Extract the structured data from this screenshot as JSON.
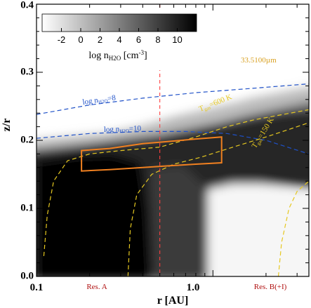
{
  "chart_data": {
    "type": "heatmap",
    "xlabel": "r [AU]",
    "ylabel": "z/r",
    "x_scale": "log",
    "xlim": [
      0.1,
      3.5
    ],
    "ylim": [
      0.0,
      0.4
    ],
    "x_ticks": [
      "0.1",
      "1.0"
    ],
    "y_ticks": [
      "0.0",
      "0.1",
      "0.2",
      "0.3",
      "0.4"
    ],
    "colorbar": {
      "label": "log n",
      "label_sub": "H2O",
      "label_unit": " [cm",
      "label_exp": "-3",
      "label_close": "]",
      "ticks": [
        "-2",
        "0",
        "2",
        "4",
        "6",
        "8",
        "10"
      ],
      "range": [
        -4,
        12
      ],
      "low_color": "#ffffff",
      "high_color": "#000000",
      "placement": "top-left"
    },
    "vline": {
      "x": 0.5,
      "color": "#ff4040"
    },
    "contours": [
      {
        "label": "log n",
        "label_sub": "H2O",
        "label_eq": "=8",
        "color": "#1e50c8",
        "points": [
          [
            0.1,
            0.238
          ],
          [
            0.2,
            0.252
          ],
          [
            0.4,
            0.262
          ],
          [
            0.8,
            0.27
          ],
          [
            1.6,
            0.276
          ],
          [
            3.5,
            0.283
          ]
        ]
      },
      {
        "label": "log n",
        "label_sub": "H2O",
        "label_eq": "=10",
        "color": "#1e50c8",
        "points": [
          [
            0.1,
            0.203
          ],
          [
            0.2,
            0.21
          ],
          [
            0.4,
            0.213
          ],
          [
            0.7,
            0.213
          ],
          [
            1.2,
            0.21
          ],
          [
            2.0,
            0.2
          ],
          [
            3.5,
            0.18
          ]
        ]
      },
      {
        "label": "T",
        "label_sub": "gas",
        "label_eq": "=600 K",
        "color": "#e6c820",
        "points": [
          [
            0.11,
            0.03
          ],
          [
            0.115,
            0.09
          ],
          [
            0.125,
            0.14
          ],
          [
            0.15,
            0.17
          ],
          [
            0.2,
            0.18
          ],
          [
            0.3,
            0.185
          ],
          [
            0.5,
            0.19
          ],
          [
            0.8,
            0.205
          ],
          [
            1.2,
            0.22
          ],
          [
            1.7,
            0.23
          ],
          [
            2.5,
            0.238
          ],
          [
            3.5,
            0.245
          ]
        ]
      },
      {
        "label": "T",
        "label_sub": "gas",
        "label_eq": "=150 K",
        "color": "#e6c820",
        "points": [
          [
            0.33,
            0.0
          ],
          [
            0.34,
            0.07
          ],
          [
            0.37,
            0.12
          ],
          [
            0.45,
            0.15
          ],
          [
            0.6,
            0.165
          ],
          [
            0.85,
            0.175
          ],
          [
            1.3,
            0.19
          ],
          [
            2.0,
            0.205
          ],
          [
            3.0,
            0.22
          ],
          [
            3.5,
            0.226
          ]
        ]
      },
      {
        "label": "",
        "color": "#e6c820",
        "points": [
          [
            2.35,
            0.0
          ],
          [
            2.45,
            0.05
          ],
          [
            2.7,
            0.1
          ],
          [
            3.0,
            0.125
          ],
          [
            3.5,
            0.14
          ]
        ]
      }
    ],
    "region": {
      "color": "#f08020",
      "points": [
        [
          0.18,
          0.155
        ],
        [
          0.26,
          0.157
        ],
        [
          0.4,
          0.16
        ],
        [
          0.6,
          0.163
        ],
        [
          0.8,
          0.165
        ],
        [
          1.12,
          0.167
        ],
        [
          1.12,
          0.205
        ],
        [
          0.8,
          0.202
        ],
        [
          0.6,
          0.199
        ],
        [
          0.4,
          0.195
        ],
        [
          0.26,
          0.188
        ],
        [
          0.18,
          0.185
        ]
      ]
    },
    "annotations": [
      {
        "text": "33.5100µm",
        "color": "#d8a020"
      },
      {
        "text": "Res. A",
        "color": "#b01010"
      },
      {
        "text": "Res. B(+I)",
        "color": "#b01010"
      }
    ]
  }
}
